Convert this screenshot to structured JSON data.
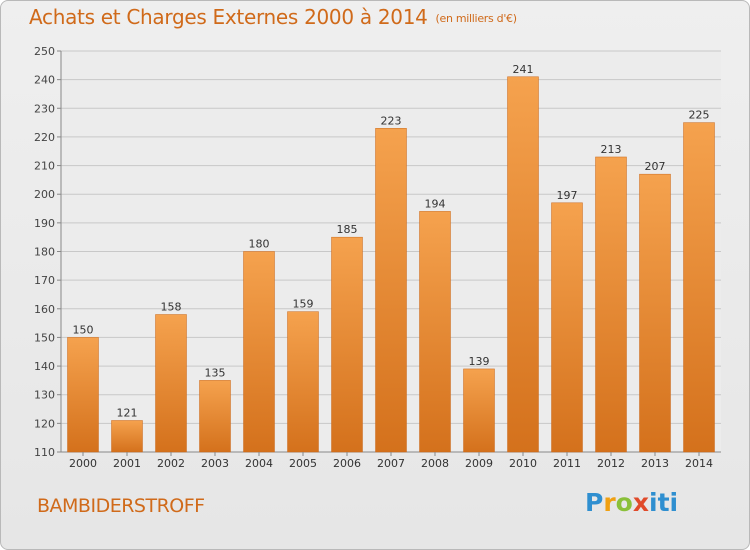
{
  "title": "Achats et Charges Externes 2000 à 2014",
  "subtitle": "(en milliers d'€)",
  "commune": "BAMBIDERSTROFF",
  "logo_text": "Proxiti",
  "colors": {
    "bar_light": "#f5a24e",
    "bar_dark": "#d4711c",
    "title": "#d06a1a",
    "grid": "#c8c8c8"
  },
  "chart_data": {
    "type": "bar",
    "title": "Achats et Charges Externes 2000 à 2014",
    "subtitle": "(en milliers d'€)",
    "categories": [
      "2000",
      "2001",
      "2002",
      "2003",
      "2004",
      "2005",
      "2006",
      "2007",
      "2008",
      "2009",
      "2010",
      "2011",
      "2012",
      "2013",
      "2014"
    ],
    "values": [
      150,
      121,
      158,
      135,
      180,
      159,
      185,
      223,
      194,
      139,
      241,
      197,
      213,
      207,
      225
    ],
    "ylim": [
      110,
      250
    ],
    "yticks": [
      110,
      120,
      130,
      140,
      150,
      160,
      170,
      180,
      190,
      200,
      210,
      220,
      230,
      240,
      250
    ],
    "grid": true,
    "data_labels": true
  }
}
